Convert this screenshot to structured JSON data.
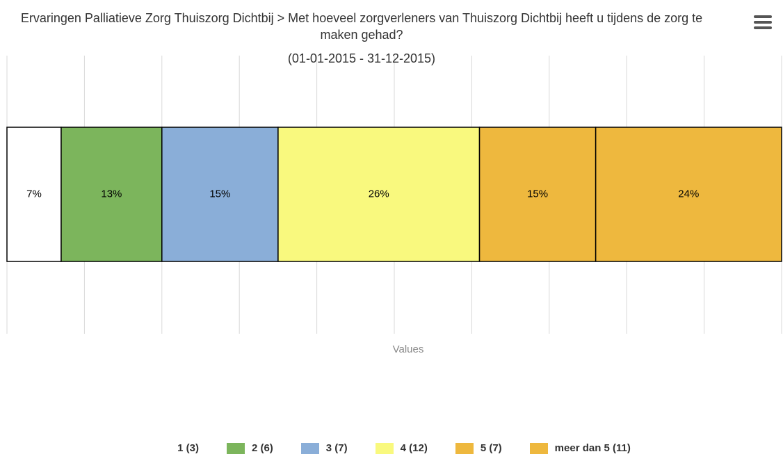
{
  "chart_data": {
    "type": "stacked_percent_bar",
    "title": "Ervaringen Palliatieve Zorg Thuiszorg Dichtbij > Met hoeveel zorgverleners van Thuiszorg Dichtbij heeft u tijdens de zorg te maken gehad?",
    "subtitle": "(01-01-2015 - 31-12-2015)",
    "x_label": "Values",
    "xlim": [
      0,
      100
    ],
    "xticks": [
      0,
      10,
      20,
      30,
      40,
      50,
      60,
      70,
      80,
      90,
      100
    ],
    "grid": true,
    "series": [
      {
        "name": "1 (3)",
        "color": "#ffffff",
        "values": [
          7
        ],
        "value_labels": [
          "7%"
        ]
      },
      {
        "name": "2 (6)",
        "color": "#7cb55c",
        "values": [
          13
        ],
        "value_labels": [
          "13%"
        ]
      },
      {
        "name": "3 (7)",
        "color": "#8aaed8",
        "values": [
          15
        ],
        "value_labels": [
          "15%"
        ]
      },
      {
        "name": "4 (12)",
        "color": "#f9f97e",
        "values": [
          26
        ],
        "value_labels": [
          "26%"
        ]
      },
      {
        "name": "5 (7)",
        "color": "#eeb83e",
        "values": [
          15
        ],
        "value_labels": [
          "15%"
        ]
      },
      {
        "name": "meer dan 5 (11)",
        "color": "#eeb83e",
        "values": [
          24
        ],
        "value_labels": [
          "24%"
        ]
      }
    ]
  }
}
